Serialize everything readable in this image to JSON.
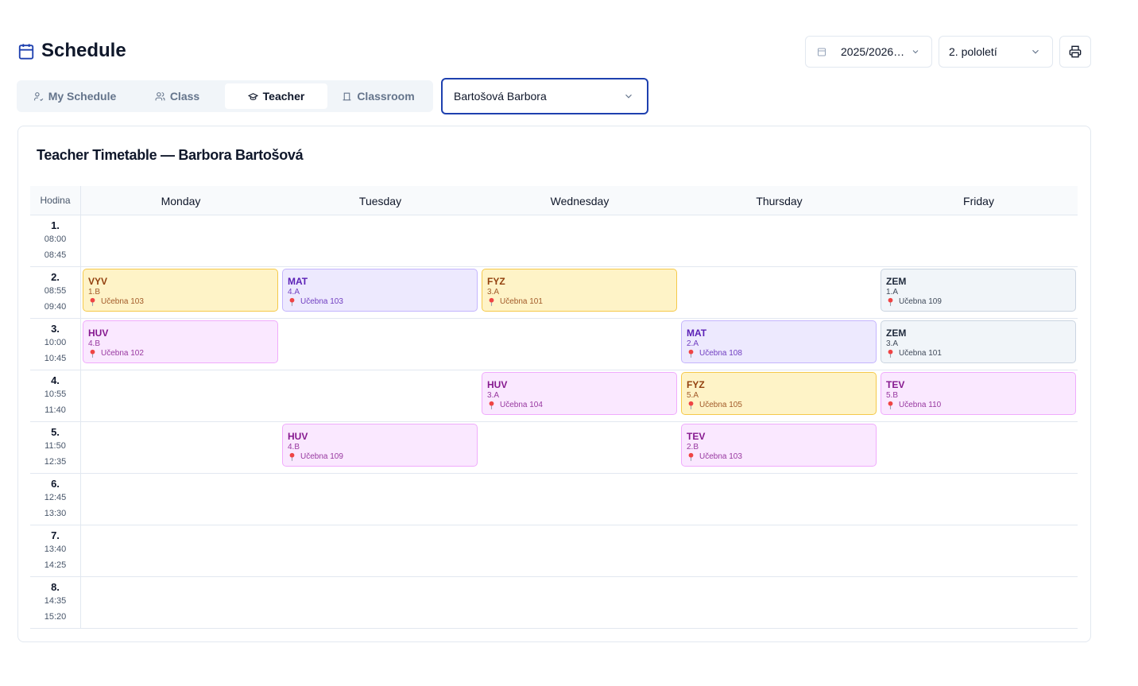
{
  "header": {
    "title": "Schedule",
    "year": "2025/2026…",
    "semester": "2. pololetí"
  },
  "tabs": [
    {
      "label": "My Schedule",
      "active": false
    },
    {
      "label": "Class",
      "active": false
    },
    {
      "label": "Teacher",
      "active": true
    },
    {
      "label": "Classroom",
      "active": false
    }
  ],
  "teacher_select": "Bartošová Barbora",
  "timetable": {
    "title": "Teacher Timetable — Barbora Bartošová",
    "hour_label": "Hodina",
    "days": [
      "Monday",
      "Tuesday",
      "Wednesday",
      "Thursday",
      "Friday"
    ],
    "rows": [
      {
        "period": "1.",
        "start": "08:00",
        "end": "08:45",
        "cells": [
          null,
          null,
          null,
          null,
          null
        ]
      },
      {
        "period": "2.",
        "start": "08:55",
        "end": "09:40",
        "cells": [
          {
            "subject": "VYV",
            "class": "1.B",
            "room": "Učebna 103",
            "color": "#fef3c7"
          },
          {
            "subject": "MAT",
            "class": "4.A",
            "room": "Učebna 103",
            "color": "#ede9fe"
          },
          {
            "subject": "FYZ",
            "class": "3.A",
            "room": "Učebna 101",
            "color": "#fef3c7"
          },
          null,
          {
            "subject": "ZEM",
            "class": "1.A",
            "room": "Učebna 109",
            "color": "#f1f5f9"
          }
        ]
      },
      {
        "period": "3.",
        "start": "10:00",
        "end": "10:45",
        "cells": [
          {
            "subject": "HUV",
            "class": "4.B",
            "room": "Učebna 102",
            "color": "#fae8ff"
          },
          null,
          null,
          {
            "subject": "MAT",
            "class": "2.A",
            "room": "Učebna 108",
            "color": "#ede9fe"
          },
          {
            "subject": "ZEM",
            "class": "3.A",
            "room": "Učebna 101",
            "color": "#f1f5f9"
          }
        ]
      },
      {
        "period": "4.",
        "start": "10:55",
        "end": "11:40",
        "cells": [
          null,
          null,
          {
            "subject": "HUV",
            "class": "3.A",
            "room": "Učebna 104",
            "color": "#fae8ff"
          },
          {
            "subject": "FYZ",
            "class": "5.A",
            "room": "Učebna 105",
            "color": "#fef3c7"
          },
          {
            "subject": "TEV",
            "class": "5.B",
            "room": "Učebna 110",
            "color": "#fae8ff"
          }
        ]
      },
      {
        "period": "5.",
        "start": "11:50",
        "end": "12:35",
        "cells": [
          null,
          {
            "subject": "HUV",
            "class": "4.B",
            "room": "Učebna 109",
            "color": "#fae8ff"
          },
          null,
          {
            "subject": "TEV",
            "class": "2.B",
            "room": "Učebna 103",
            "color": "#fae8ff"
          },
          null
        ]
      },
      {
        "period": "6.",
        "start": "12:45",
        "end": "13:30",
        "cells": [
          null,
          null,
          null,
          null,
          null
        ]
      },
      {
        "period": "7.",
        "start": "13:40",
        "end": "14:25",
        "cells": [
          null,
          null,
          null,
          null,
          null
        ]
      },
      {
        "period": "8.",
        "start": "14:35",
        "end": "15:20",
        "cells": [
          null,
          null,
          null,
          null,
          null
        ]
      }
    ]
  }
}
